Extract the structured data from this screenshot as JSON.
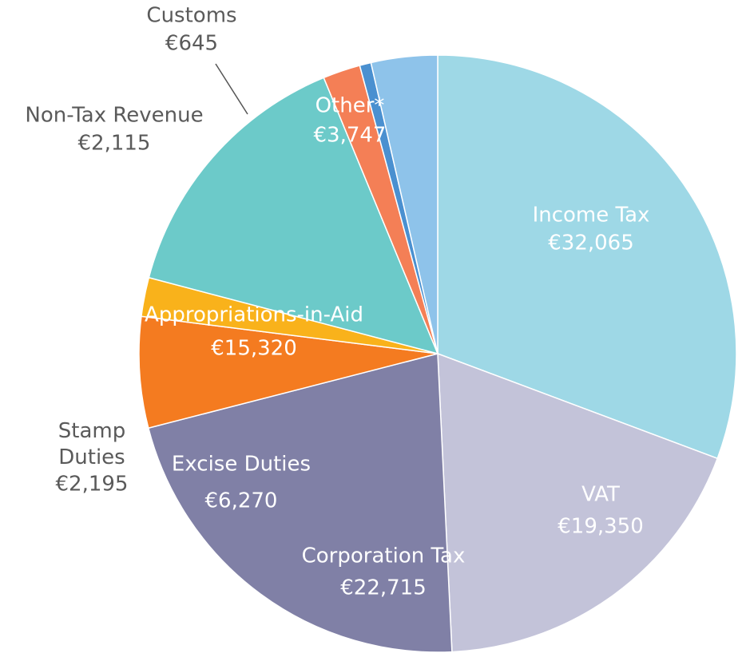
{
  "chart_data": {
    "type": "pie",
    "categories": [
      "Income Tax",
      "VAT",
      "Corporation Tax",
      "Excise Duties",
      "Stamp Duties",
      "Appropriations-in-Aid",
      "Non-Tax Revenue",
      "Customs",
      "Other*"
    ],
    "values": [
      32065,
      19350,
      22715,
      6270,
      2195,
      15320,
      2115,
      645,
      3747
    ],
    "value_labels": [
      "€32,065",
      "€19,350",
      "€22,715",
      "€6,270",
      "€2,195",
      "€15,320",
      "€2,115",
      "€645",
      "€3,747"
    ],
    "colors": [
      "#9ed8e6",
      "#c3c3d9",
      "#8080a6",
      "#f47b20",
      "#f9b21b",
      "#6ccac9",
      "#f47f56",
      "#4a90d0",
      "#8ec3ea"
    ]
  }
}
